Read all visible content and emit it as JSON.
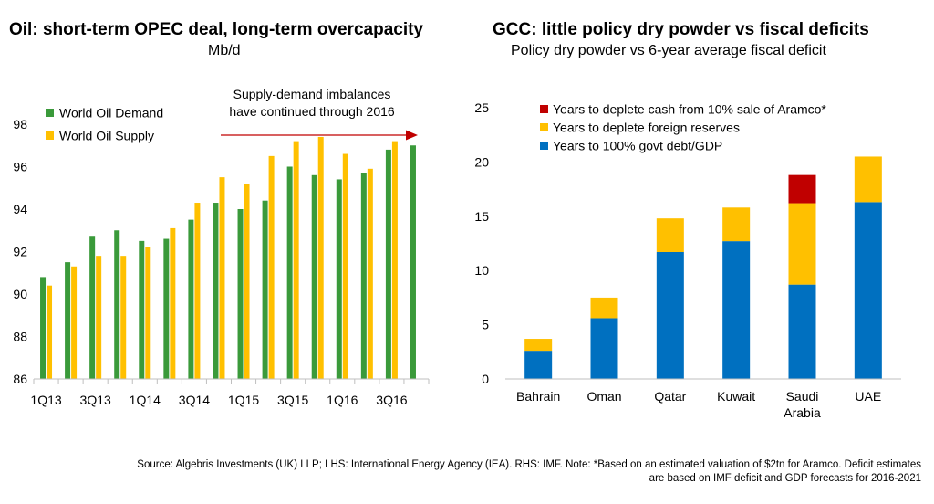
{
  "left": {
    "title": "Oil: short-term OPEC deal, long-term overcapacity",
    "subtitle": "Mb/d"
  },
  "right": {
    "title": "GCC: little policy dry powder vs fiscal deficits",
    "subtitle": "Policy dry powder vs 6-year average fiscal deficit"
  },
  "footnote": {
    "line1": "Source: Algebris Investments (UK) LLP; LHS: International Energy Agency (IEA). RHS: IMF. Note: *Based on an estimated valuation of $2tn for Aramco. Deficit estimates",
    "line2": "are based on IMF deficit and GDP forecasts for 2016-2021"
  },
  "colors": {
    "demand": "#3a9a3a",
    "supply": "#ffc000",
    "debt": "#0070c0",
    "reserves": "#ffc000",
    "aramco": "#c00000",
    "arrow": "#c00000",
    "axis": "#bfbfbf"
  },
  "chart_data": [
    {
      "type": "bar",
      "title": "Oil: short-term OPEC deal, long-term overcapacity",
      "ylabel": "Mb/d",
      "ylim": [
        86,
        98
      ],
      "yticks": [
        86,
        88,
        90,
        92,
        94,
        96,
        98
      ],
      "categories": [
        "1Q13",
        "2Q13",
        "3Q13",
        "4Q13",
        "1Q14",
        "2Q14",
        "3Q14",
        "4Q14",
        "1Q15",
        "2Q15",
        "3Q15",
        "4Q15",
        "1Q16",
        "2Q16",
        "3Q16",
        "4Q16"
      ],
      "tick_labels": [
        "1Q13",
        "3Q13",
        "1Q14",
        "3Q14",
        "1Q15",
        "3Q15",
        "1Q16",
        "3Q16"
      ],
      "legend_position": "top-left",
      "series": [
        {
          "name": "World Oil Demand",
          "values": [
            90.8,
            91.5,
            92.7,
            93.0,
            92.5,
            92.6,
            93.5,
            94.3,
            94.0,
            94.4,
            96.0,
            95.6,
            95.4,
            95.7,
            96.8,
            97.0
          ]
        },
        {
          "name": "World Oil Supply",
          "values": [
            90.4,
            91.3,
            91.8,
            91.8,
            92.2,
            93.1,
            94.3,
            95.5,
            95.2,
            96.5,
            97.2,
            97.4,
            96.6,
            95.9,
            97.2,
            null
          ]
        }
      ],
      "annotation": {
        "line1": "Supply-demand imbalances",
        "line2": "have continued through 2016"
      }
    },
    {
      "type": "bar",
      "stacked": true,
      "title": "GCC: little policy dry powder vs fiscal deficits",
      "subtitle": "Policy dry powder vs 6-year average fiscal deficit",
      "ylim": [
        0,
        25
      ],
      "yticks": [
        0,
        5,
        10,
        15,
        20,
        25
      ],
      "categories": [
        "Bahrain",
        "Oman",
        "Qatar",
        "Kuwait",
        "Saudi Arabia",
        "UAE"
      ],
      "category_lines": [
        [
          "Bahrain"
        ],
        [
          "Oman"
        ],
        [
          "Qatar"
        ],
        [
          "Kuwait"
        ],
        [
          "Saudi",
          "Arabia"
        ],
        [
          "UAE"
        ]
      ],
      "legend_position": "top-left",
      "series": [
        {
          "name": "Years to 100% govt debt/GDP",
          "values": [
            2.6,
            5.6,
            11.7,
            12.7,
            8.7,
            16.3
          ]
        },
        {
          "name": "Years to deplete foreign reserves",
          "values": [
            1.1,
            1.9,
            3.1,
            3.1,
            7.5,
            4.2
          ]
        },
        {
          "name": "Years to deplete cash from 10% sale of Aramco*",
          "values": [
            0,
            0,
            0,
            0,
            2.6,
            0
          ]
        }
      ]
    }
  ]
}
